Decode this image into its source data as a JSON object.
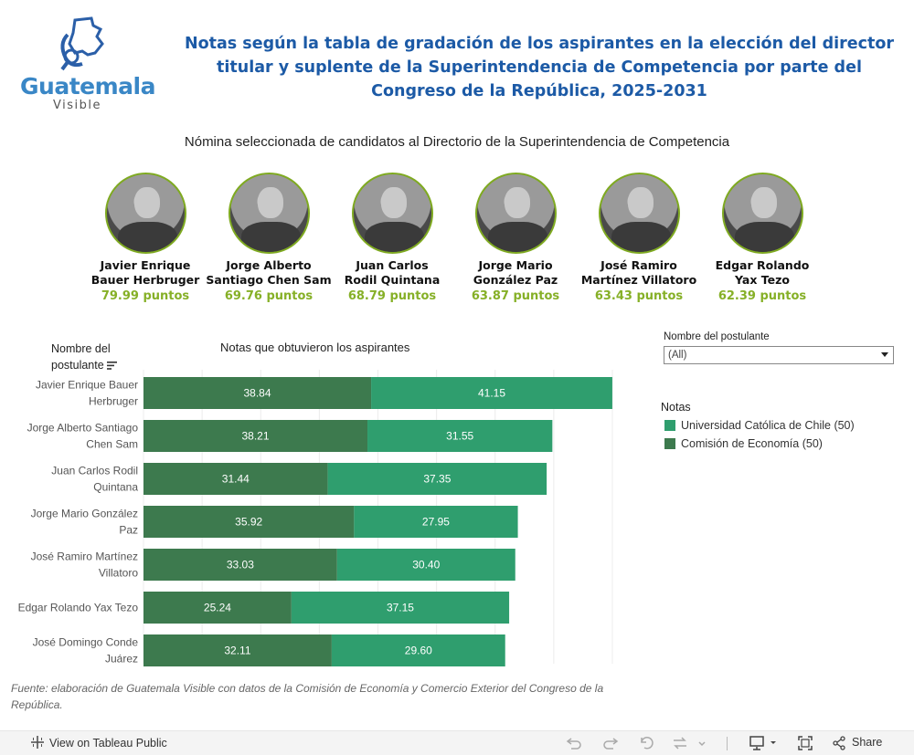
{
  "logo": {
    "word": "Guatemala",
    "sub": "Visible"
  },
  "title": "Notas según la tabla de gradación de los aspirantes en la elección del director titular y suplente de la Superintendencia de Competencia por parte del Congreso de la República, 2025-2031",
  "subtitle": "Nómina seleccionada de candidatos al Directorio de la Superintendencia de Competencia",
  "candidates": [
    {
      "line1": "Javier Enrique",
      "line2": "Bauer Herbruger",
      "points": "79.99 puntos"
    },
    {
      "line1": "Jorge Alberto",
      "line2": "Santiago Chen Sam",
      "points": "69.76 puntos"
    },
    {
      "line1": "Juan Carlos",
      "line2": "Rodil Quintana",
      "points": "68.79 puntos"
    },
    {
      "line1": "Jorge Mario",
      "line2": "González Paz",
      "points": "63.87 puntos"
    },
    {
      "line1": "José Ramiro",
      "line2": "Martínez Villatoro",
      "points": "63.43 puntos"
    },
    {
      "line1": "Edgar Rolando",
      "line2": "Yax Tezo",
      "points": "62.39 puntos"
    }
  ],
  "column_header_name_1": "Nombre del",
  "column_header_name_2": "postulante",
  "column_header_notes": "Notas que obtuvieron los aspirantes",
  "filter": {
    "label": "Nombre del postulante",
    "value": "(All)"
  },
  "legend": {
    "title": "Notas",
    "items": [
      {
        "label": "Universidad Católica de Chile (50)",
        "color": "#2f9e6e"
      },
      {
        "label": "Comisión de Economía (50)",
        "color": "#3d7a4e"
      }
    ]
  },
  "source": "Fuente: elaboración de Guatemala Visible con datos de la Comisión de Economía y Comercio Exterior del Congreso de la República.",
  "toolbar": {
    "view_label": "View on Tableau Public",
    "share_label": "Share"
  },
  "chart_data": {
    "type": "bar",
    "orientation": "horizontal",
    "stacked": true,
    "categories": [
      [
        "Javier Enrique Bauer",
        "Herbruger"
      ],
      [
        "Jorge Alberto Santiago",
        "Chen Sam"
      ],
      [
        "Juan Carlos Rodil",
        "Quintana"
      ],
      [
        "Jorge Mario González",
        "Paz"
      ],
      [
        "José Ramiro Martínez",
        "Villatoro"
      ],
      [
        "Edgar Rolando Yax Tezo"
      ],
      [
        "José Domingo Conde",
        "Juárez"
      ]
    ],
    "series": [
      {
        "name": "Comisión de Economía (50)",
        "color": "#3d7a4e",
        "values": [
          38.84,
          38.21,
          31.44,
          35.92,
          33.03,
          25.24,
          32.11
        ]
      },
      {
        "name": "Universidad Católica de Chile (50)",
        "color": "#2f9e6e",
        "values": [
          41.15,
          31.55,
          37.35,
          27.95,
          30.4,
          37.15,
          29.6
        ]
      }
    ],
    "xlim": [
      0,
      80
    ],
    "grid": true
  }
}
